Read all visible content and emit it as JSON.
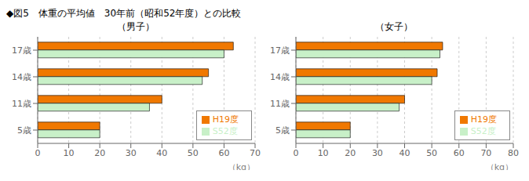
{
  "title": "◆図5　体重の平均値　30年前（昭和52年度）との比較",
  "chart_data": [
    {
      "type": "bar",
      "orientation": "horizontal",
      "subtitle": "（男子）",
      "categories": [
        "5歳",
        "11歳",
        "14歳",
        "17歳"
      ],
      "series": [
        {
          "name": "H19度",
          "color": "#f07800",
          "values": [
            20,
            40,
            55,
            63
          ]
        },
        {
          "name": "S52度",
          "color": "#c8f0c8",
          "values": [
            20,
            36,
            53,
            60
          ]
        }
      ],
      "x_label": "（kg）",
      "xlim": [
        0,
        70
      ],
      "xticks": [
        0,
        10,
        20,
        30,
        40,
        50,
        60,
        70
      ],
      "grid": true,
      "legend": "lower right"
    },
    {
      "type": "bar",
      "orientation": "horizontal",
      "subtitle": "（女子）",
      "categories": [
        "5歳",
        "11歳",
        "14歳",
        "17歳"
      ],
      "series": [
        {
          "name": "H19度",
          "color": "#f07800",
          "values": [
            20,
            40,
            52,
            54
          ]
        },
        {
          "name": "S52度",
          "color": "#c8f0c8",
          "values": [
            20,
            38,
            50,
            53
          ]
        }
      ],
      "x_label": "（kg）",
      "xlim": [
        0,
        80
      ],
      "xticks": [
        0,
        10,
        20,
        30,
        40,
        50,
        60,
        70,
        80
      ],
      "grid": true,
      "legend": "lower right"
    }
  ]
}
